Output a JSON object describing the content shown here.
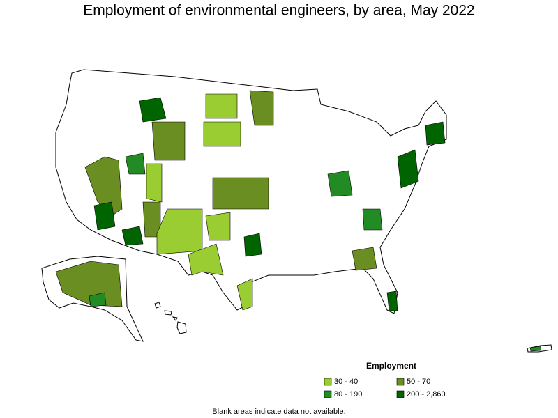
{
  "title": "Employment of environmental engineers, by area, May 2022",
  "legend": {
    "title": "Employment",
    "items": [
      {
        "label": "30 - 40",
        "color": "#9ACD32"
      },
      {
        "label": "50 - 70",
        "color": "#6B8E23"
      },
      {
        "label": "80 - 190",
        "color": "#238B23"
      },
      {
        "label": "200 - 2,860",
        "color": "#006400"
      }
    ]
  },
  "note": "Blank areas indicate data not available."
}
